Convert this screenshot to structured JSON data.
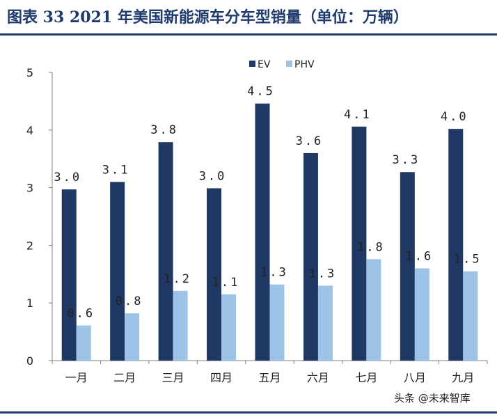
{
  "title": "图表 33 2021 年美国新能源车分车型销量（单位：万辆）",
  "watermark": "头条 @未来智库",
  "colors": {
    "ev": "#1f3864",
    "phv": "#9dc3e6",
    "title": "#1f3b6d",
    "axis": "#7f7f7f"
  },
  "chart_data": {
    "type": "bar",
    "categories": [
      "一月",
      "二月",
      "三月",
      "四月",
      "五月",
      "六月",
      "七月",
      "八月",
      "九月"
    ],
    "series": [
      {
        "name": "EV",
        "values": [
          2.97,
          3.1,
          3.79,
          2.99,
          4.46,
          3.6,
          4.06,
          3.27,
          4.02
        ],
        "labels": [
          "3.0",
          "3.1",
          "3.8",
          "3.0",
          "4.5",
          "3.6",
          "4.1",
          "3.3",
          "4.0"
        ]
      },
      {
        "name": "PHV",
        "values": [
          0.61,
          0.82,
          1.21,
          1.15,
          1.32,
          1.3,
          1.76,
          1.6,
          1.55
        ],
        "labels": [
          "0.6",
          "0.8",
          "1.2",
          "1.1",
          "1.3",
          "1.3",
          "1.8",
          "1.6",
          "1.5"
        ]
      }
    ],
    "ylim": [
      0,
      5
    ],
    "yticks": [
      "0",
      "1",
      "2",
      "3",
      "4",
      "5"
    ],
    "legend_position": "top-center",
    "grid": false
  }
}
